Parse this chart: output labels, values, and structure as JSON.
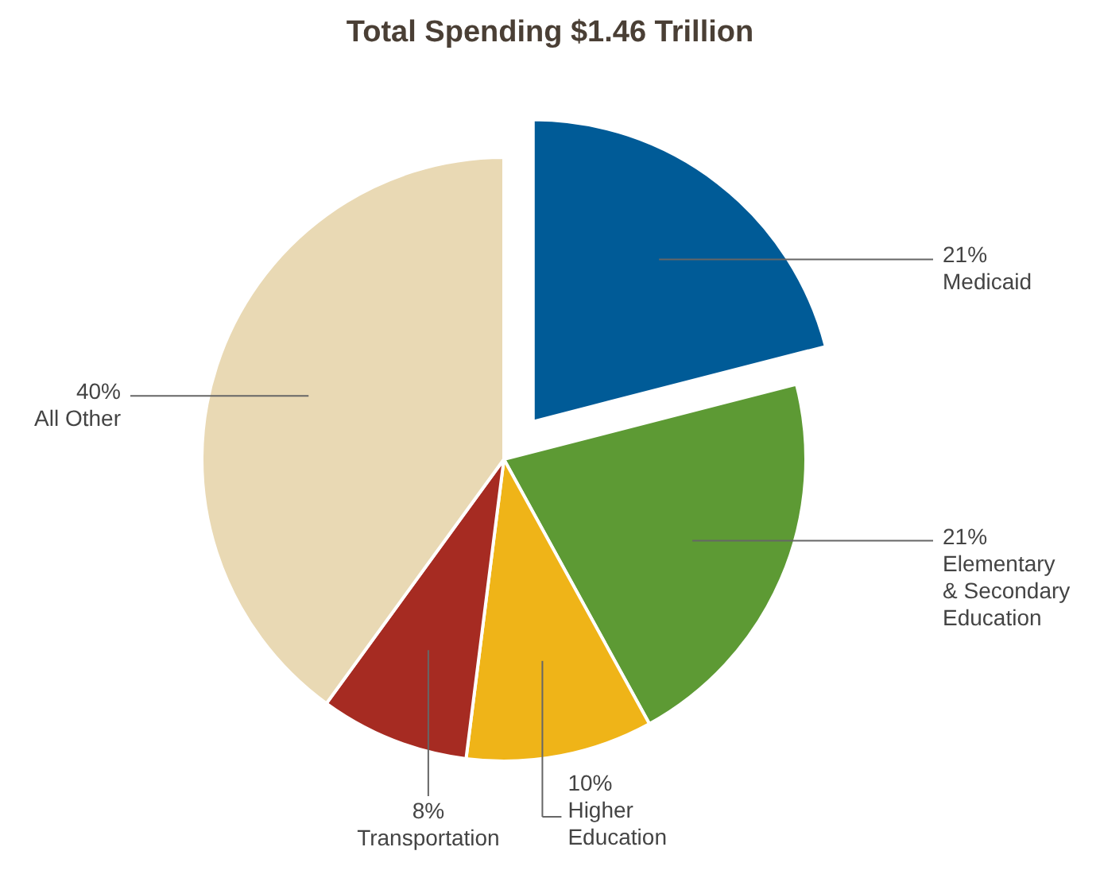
{
  "chart_data": {
    "type": "pie",
    "title": "Total Spending $1.46 Trillion",
    "categories": [
      "Medicaid",
      "Elementary & Secondary Education",
      "Higher Education",
      "Transportation",
      "All Other"
    ],
    "values": [
      21,
      21,
      10,
      8,
      40
    ],
    "value_labels": [
      "21%",
      "21%",
      "10%",
      "8%",
      "40%"
    ],
    "colors": [
      "#005b97",
      "#5d9a34",
      "#efb418",
      "#a62b22",
      "#e9d9b4"
    ]
  }
}
